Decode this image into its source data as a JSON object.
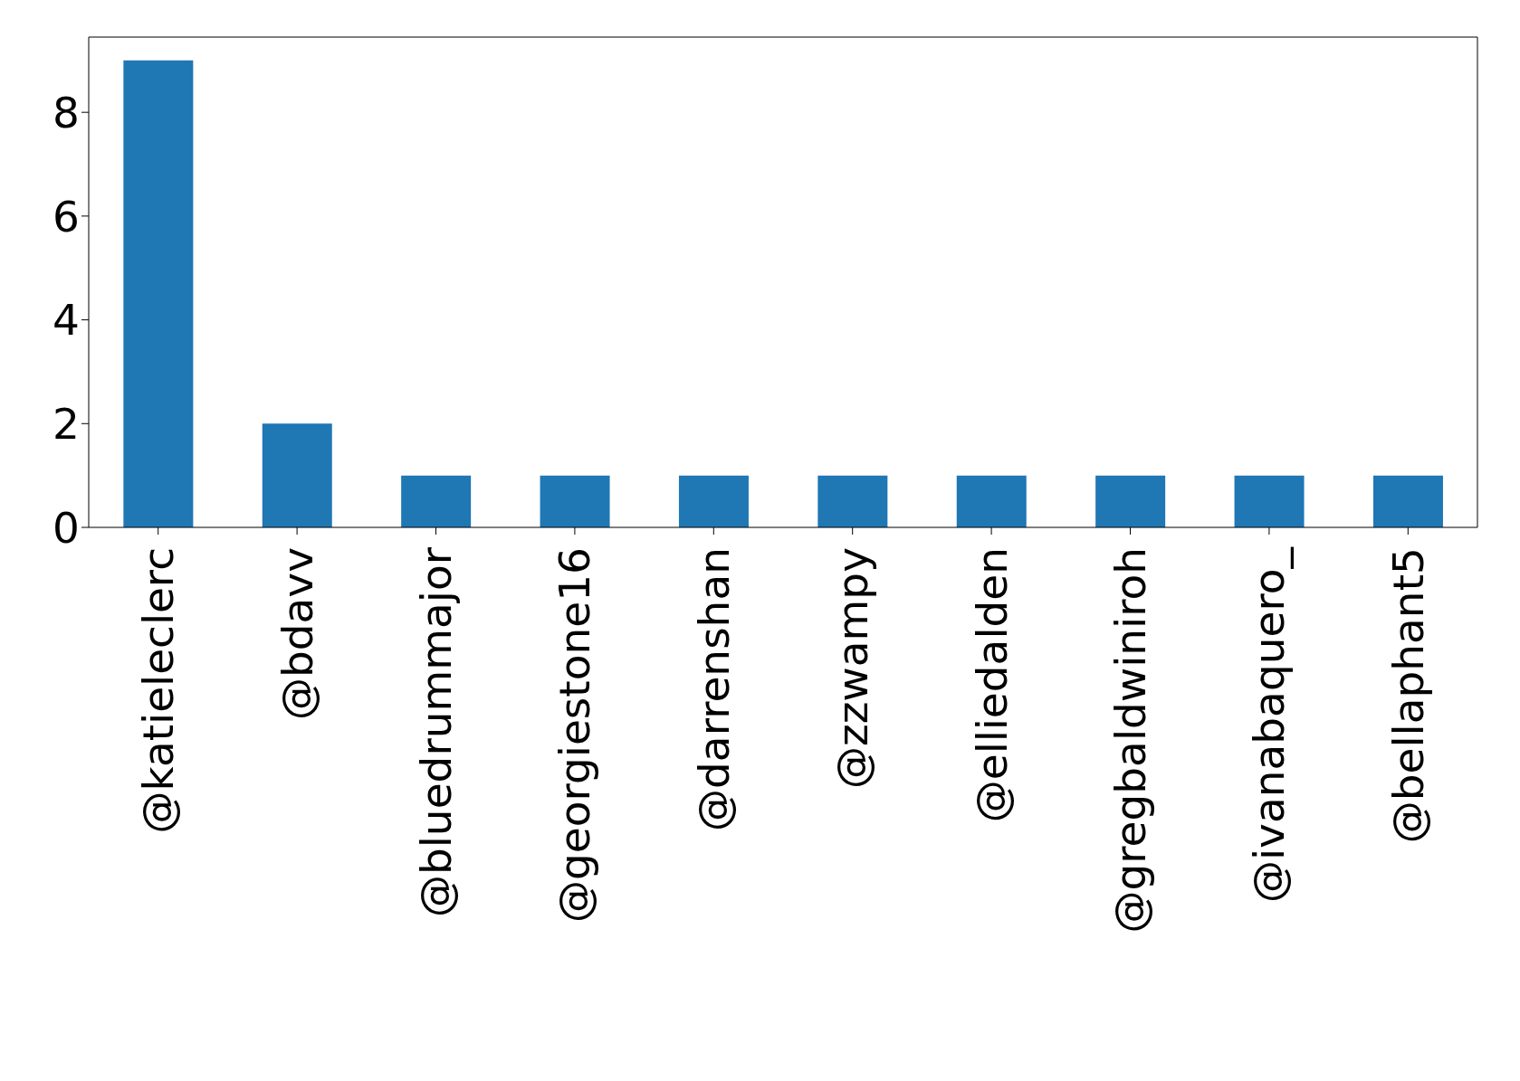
{
  "chart_data": {
    "type": "bar",
    "categories": [
      "@katieleclerc",
      "@bdavv",
      "@bluedrummajor",
      "@georgiestone16",
      "@darrenshan",
      "@zzwampy",
      "@elliedalden",
      "@gregbaldwiniroh",
      "@ivanabaquero_",
      "@bellaphant5"
    ],
    "values": [
      9,
      2,
      1,
      1,
      1,
      1,
      1,
      1,
      1,
      1
    ],
    "color": "#1f77b4",
    "ylim": [
      0,
      9.45
    ],
    "yticks": [
      0,
      2,
      4,
      6,
      8
    ],
    "grid": false,
    "legend": false
  }
}
